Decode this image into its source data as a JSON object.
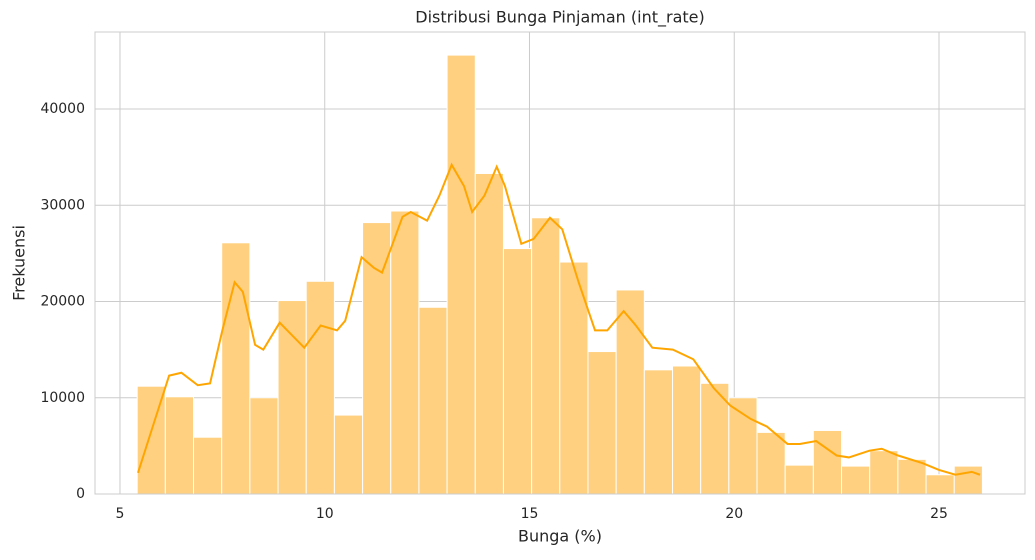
{
  "chart_data": {
    "type": "histogram",
    "title": "Distribusi Bunga Pinjaman (int_rate)",
    "x_label": "Bunga (%)",
    "y_label": "Frekuensi",
    "bins": [
      5.42,
      6.108,
      6.796,
      7.484,
      8.172,
      8.86,
      9.548,
      10.236,
      10.924,
      11.612,
      12.3,
      12.988,
      13.676,
      14.364,
      15.052,
      15.74,
      16.428,
      17.116,
      17.804,
      18.492,
      19.18,
      19.868,
      20.556,
      21.244,
      21.932,
      22.62,
      23.308,
      23.996,
      24.684,
      25.372,
      26.06
    ],
    "values": [
      11200,
      10100,
      5900,
      26100,
      10000,
      20100,
      22100,
      8200,
      28200,
      29400,
      19400,
      45600,
      33300,
      25500,
      28700,
      24100,
      14800,
      21200,
      12900,
      13300,
      11500,
      10000,
      6400,
      3000,
      6600,
      2900,
      4500,
      3600,
      2000,
      2900
    ],
    "color": "#ffd080",
    "kde": {
      "color": "#ffa500",
      "x": [
        5.44,
        5.8,
        6.2,
        6.5,
        6.9,
        7.2,
        7.5,
        7.8,
        8.0,
        8.3,
        8.5,
        8.9,
        9.2,
        9.5,
        9.9,
        10.3,
        10.5,
        10.9,
        11.2,
        11.4,
        11.9,
        12.1,
        12.5,
        12.8,
        13.1,
        13.4,
        13.6,
        13.9,
        14.2,
        14.4,
        14.8,
        15.1,
        15.5,
        15.8,
        16.2,
        16.6,
        16.9,
        17.3,
        17.6,
        18.0,
        18.5,
        19.0,
        19.5,
        19.9,
        20.4,
        20.8,
        21.3,
        21.6,
        22.0,
        22.5,
        22.8,
        23.3,
        23.6,
        24.0,
        24.6,
        25.0,
        25.4,
        25.8,
        26.0
      ],
      "values": [
        2200,
        7000,
        12300,
        12600,
        11300,
        11500,
        17000,
        22000,
        21000,
        15500,
        15000,
        17800,
        16500,
        15200,
        17500,
        17000,
        18000,
        24600,
        23500,
        23000,
        28800,
        29300,
        28400,
        31000,
        34200,
        32000,
        29300,
        31000,
        34000,
        32000,
        26000,
        26500,
        28700,
        27500,
        22000,
        17000,
        17000,
        19000,
        17500,
        15200,
        15000,
        14000,
        11000,
        9200,
        7800,
        7000,
        5200,
        5200,
        5500,
        4000,
        3800,
        4500,
        4700,
        4000,
        3200,
        2500,
        2000,
        2300,
        2000
      ]
    },
    "xlim": [
      4.39,
      27.1
    ],
    "ylim": [
      0,
      48000
    ],
    "xticks": [
      5,
      10,
      15,
      20,
      25
    ],
    "yticks": [
      0,
      10000,
      20000,
      30000,
      40000
    ],
    "grid": true
  }
}
